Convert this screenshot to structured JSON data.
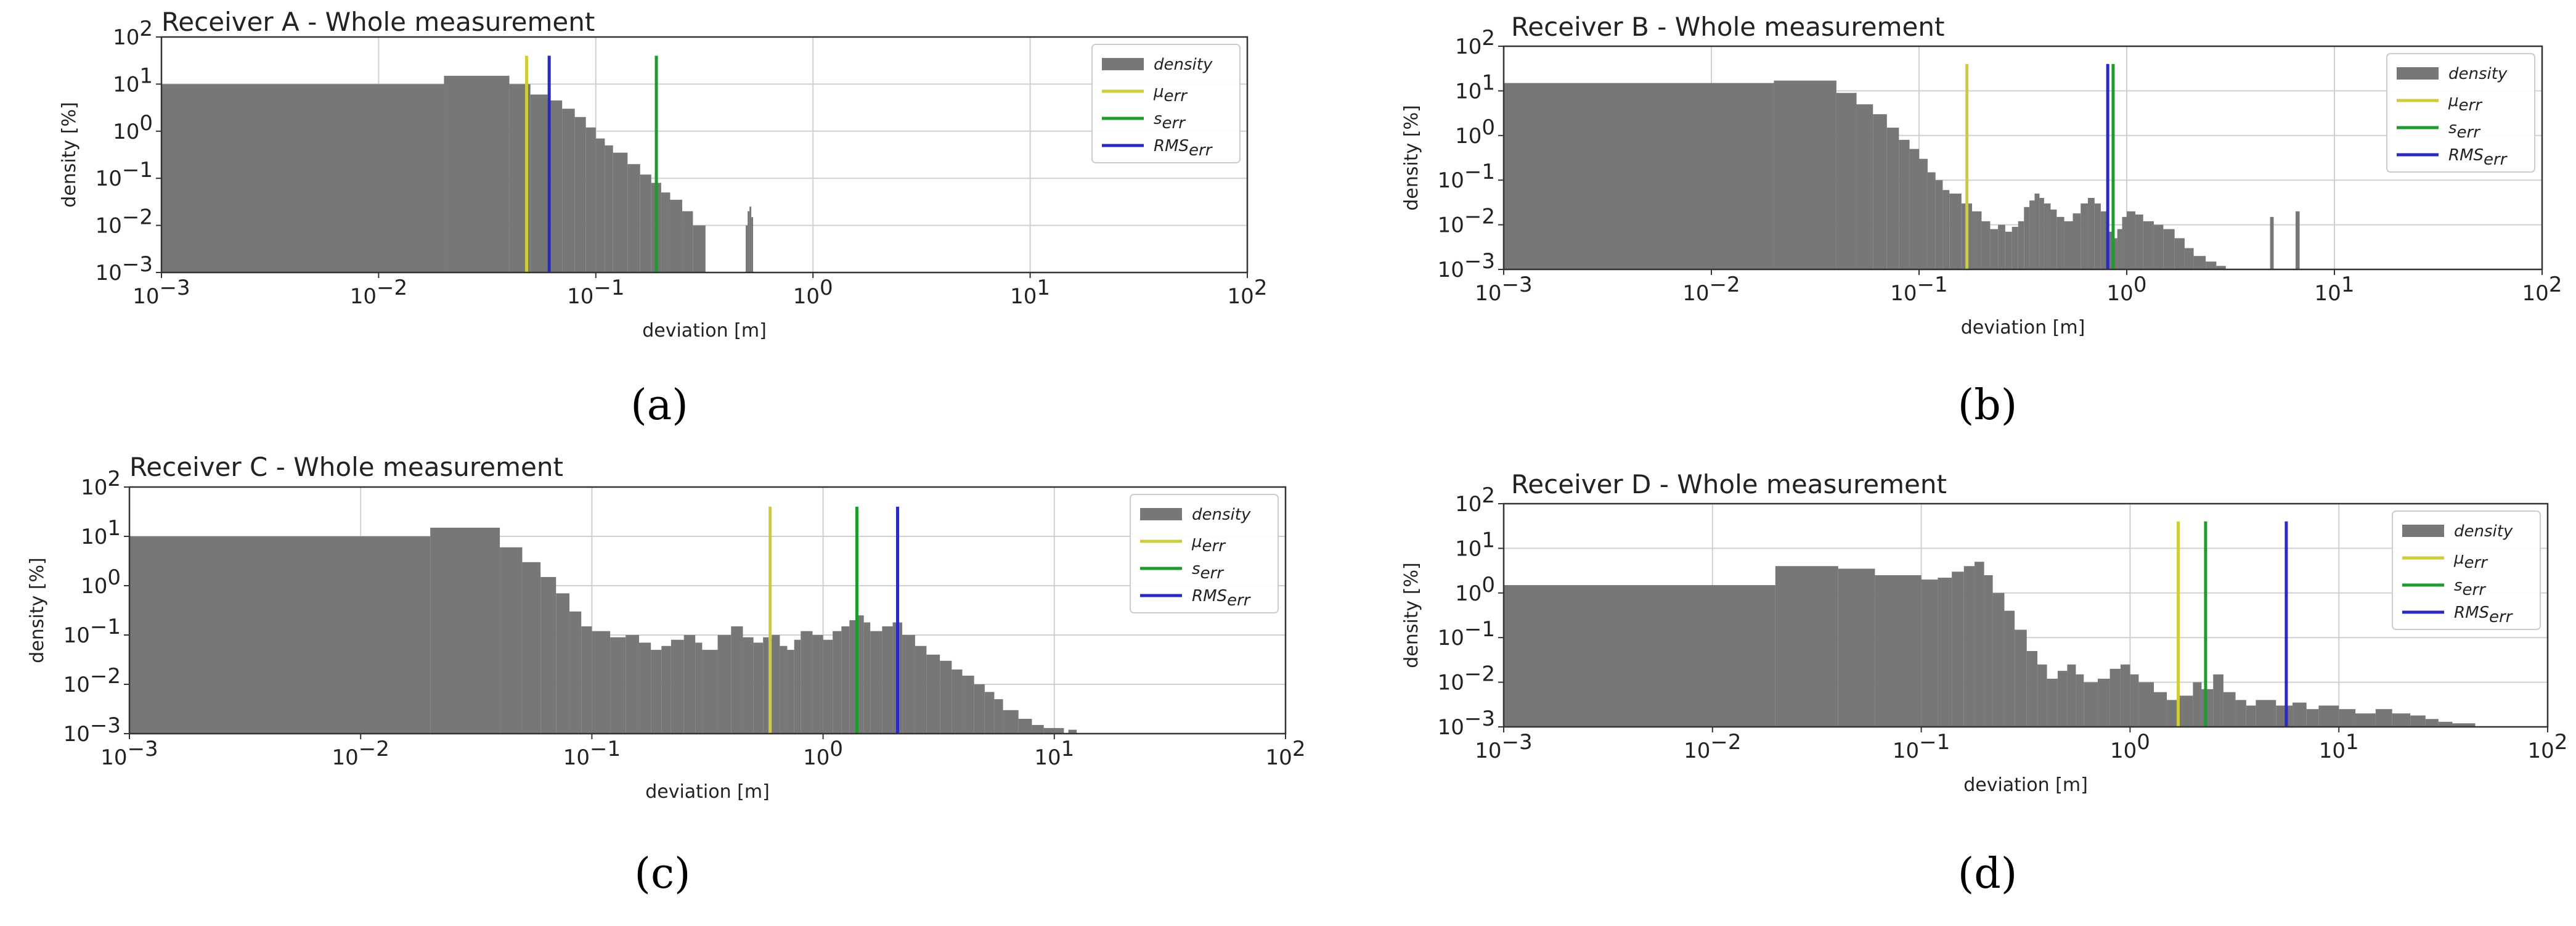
{
  "figure": {
    "panels": [
      {
        "id": "a",
        "caption": "(a)",
        "title": "Receiver A - Whole measurement"
      },
      {
        "id": "b",
        "caption": "(b)",
        "title": "Receiver B - Whole measurement"
      },
      {
        "id": "c",
        "caption": "(c)",
        "title": "Receiver C - Whole measurement"
      },
      {
        "id": "d",
        "caption": "(d)",
        "title": "Receiver D - Whole measurement"
      }
    ]
  },
  "chart_data": [
    {
      "type": "bar",
      "title": "Receiver A - Whole measurement",
      "xlabel": "deviation [m]",
      "ylabel": "density [%]",
      "xscale": "log",
      "yscale": "log",
      "xlim": [
        0.001,
        100
      ],
      "ylim": [
        0.001,
        100
      ],
      "xticks": [
        "10^-3",
        "10^-2",
        "10^-1",
        "10^0",
        "10^1",
        "10^2"
      ],
      "yticks": [
        "10^-3",
        "10^-2",
        "10^-1",
        "10^0",
        "10^1",
        "10^2"
      ],
      "grid": true,
      "legend": {
        "position": "top-right",
        "entries": [
          {
            "label": "density",
            "color": "#777777",
            "kind": "bar"
          },
          {
            "label": "μ",
            "sub": "err",
            "color": "#cdcd3c",
            "kind": "line"
          },
          {
            "label": "s",
            "sub": "err",
            "color": "#1e9a2e",
            "kind": "line"
          },
          {
            "label": "RMS",
            "sub": "err",
            "color": "#2a2ac0",
            "kind": "line"
          }
        ]
      },
      "density": [
        [
          0.001,
          0.02,
          10
        ],
        [
          0.02,
          0.04,
          15
        ],
        [
          0.04,
          0.05,
          10
        ],
        [
          0.05,
          0.06,
          6
        ],
        [
          0.06,
          0.07,
          4.5
        ],
        [
          0.07,
          0.08,
          3
        ],
        [
          0.08,
          0.09,
          2
        ],
        [
          0.09,
          0.1,
          1.2
        ],
        [
          0.1,
          0.11,
          0.7
        ],
        [
          0.11,
          0.12,
          0.5
        ],
        [
          0.12,
          0.14,
          0.35
        ],
        [
          0.14,
          0.16,
          0.2
        ],
        [
          0.16,
          0.18,
          0.12
        ],
        [
          0.18,
          0.2,
          0.08
        ],
        [
          0.2,
          0.22,
          0.05
        ],
        [
          0.22,
          0.25,
          0.035
        ],
        [
          0.25,
          0.28,
          0.02
        ],
        [
          0.28,
          0.32,
          0.01
        ],
        [
          0.49,
          0.5,
          0.01
        ],
        [
          0.5,
          0.51,
          0.02
        ],
        [
          0.51,
          0.52,
          0.025
        ],
        [
          0.52,
          0.53,
          0.015
        ]
      ],
      "stats": {
        "mu_err": 0.048,
        "s_err": 0.19,
        "rms_err": 0.061
      }
    },
    {
      "type": "bar",
      "title": "Receiver B - Whole measurement",
      "xlabel": "deviation [m]",
      "ylabel": "density [%]",
      "xscale": "log",
      "yscale": "log",
      "xlim": [
        0.001,
        100
      ],
      "ylim": [
        0.001,
        100
      ],
      "xticks": [
        "10^-3",
        "10^-2",
        "10^-1",
        "10^0",
        "10^1",
        "10^2"
      ],
      "yticks": [
        "10^-3",
        "10^-2",
        "10^-1",
        "10^0",
        "10^1",
        "10^2"
      ],
      "grid": true,
      "legend": {
        "position": "top-right",
        "entries": [
          {
            "label": "density",
            "color": "#777777",
            "kind": "bar"
          },
          {
            "label": "μ",
            "sub": "err",
            "color": "#cdcd3c",
            "kind": "line"
          },
          {
            "label": "s",
            "sub": "err",
            "color": "#1e9a2e",
            "kind": "line"
          },
          {
            "label": "RMS",
            "sub": "err",
            "color": "#2a2ac0",
            "kind": "line"
          }
        ]
      },
      "density": [
        [
          0.001,
          0.02,
          15
        ],
        [
          0.02,
          0.04,
          17
        ],
        [
          0.04,
          0.05,
          9
        ],
        [
          0.05,
          0.06,
          5
        ],
        [
          0.06,
          0.07,
          3
        ],
        [
          0.07,
          0.08,
          1.5
        ],
        [
          0.08,
          0.09,
          0.8
        ],
        [
          0.09,
          0.1,
          0.5
        ],
        [
          0.1,
          0.11,
          0.3
        ],
        [
          0.11,
          0.12,
          0.15
        ],
        [
          0.12,
          0.13,
          0.1
        ],
        [
          0.13,
          0.14,
          0.06
        ],
        [
          0.14,
          0.16,
          0.05
        ],
        [
          0.16,
          0.18,
          0.03
        ],
        [
          0.18,
          0.2,
          0.02
        ],
        [
          0.2,
          0.22,
          0.012
        ],
        [
          0.22,
          0.24,
          0.008
        ],
        [
          0.24,
          0.26,
          0.01
        ],
        [
          0.26,
          0.28,
          0.007
        ],
        [
          0.28,
          0.3,
          0.009
        ],
        [
          0.3,
          0.32,
          0.012
        ],
        [
          0.32,
          0.34,
          0.025
        ],
        [
          0.34,
          0.36,
          0.035
        ],
        [
          0.36,
          0.38,
          0.05
        ],
        [
          0.38,
          0.4,
          0.04
        ],
        [
          0.4,
          0.43,
          0.03
        ],
        [
          0.43,
          0.46,
          0.022
        ],
        [
          0.46,
          0.5,
          0.015
        ],
        [
          0.5,
          0.55,
          0.012
        ],
        [
          0.55,
          0.6,
          0.018
        ],
        [
          0.6,
          0.65,
          0.03
        ],
        [
          0.65,
          0.7,
          0.04
        ],
        [
          0.7,
          0.75,
          0.03
        ],
        [
          0.75,
          0.8,
          0.02
        ],
        [
          0.8,
          0.85,
          0.007
        ],
        [
          0.85,
          0.9,
          0.005
        ],
        [
          0.9,
          0.95,
          0.008
        ],
        [
          0.95,
          1,
          0.015
        ],
        [
          1,
          1.1,
          0.02
        ],
        [
          1.1,
          1.2,
          0.017
        ],
        [
          1.2,
          1.35,
          0.012
        ],
        [
          1.35,
          1.5,
          0.01
        ],
        [
          1.5,
          1.7,
          0.008
        ],
        [
          1.7,
          1.9,
          0.005
        ],
        [
          1.9,
          2.1,
          0.003
        ],
        [
          2.1,
          2.4,
          0.002
        ],
        [
          2.4,
          2.7,
          0.0015
        ],
        [
          2.7,
          3,
          0.0012
        ],
        [
          4.9,
          5.1,
          0.015
        ],
        [
          6.5,
          6.8,
          0.02
        ]
      ],
      "stats": {
        "mu_err": 0.17,
        "s_err": 0.86,
        "rms_err": 0.81
      }
    },
    {
      "type": "bar",
      "title": "Receiver C - Whole measurement",
      "xlabel": "deviation [m]",
      "ylabel": "density [%]",
      "xscale": "log",
      "yscale": "log",
      "xlim": [
        0.001,
        100
      ],
      "ylim": [
        0.001,
        100
      ],
      "xticks": [
        "10^-3",
        "10^-2",
        "10^-1",
        "10^0",
        "10^1",
        "10^2"
      ],
      "yticks": [
        "10^-3",
        "10^-2",
        "10^-1",
        "10^0",
        "10^1",
        "10^2"
      ],
      "grid": true,
      "legend": {
        "position": "top-right",
        "entries": [
          {
            "label": "density",
            "color": "#777777",
            "kind": "bar"
          },
          {
            "label": "μ",
            "sub": "err",
            "color": "#cdcd3c",
            "kind": "line"
          },
          {
            "label": "s",
            "sub": "err",
            "color": "#1e9a2e",
            "kind": "line"
          },
          {
            "label": "RMS",
            "sub": "err",
            "color": "#2a2ac0",
            "kind": "line"
          }
        ]
      },
      "density": [
        [
          0.001,
          0.02,
          10
        ],
        [
          0.02,
          0.04,
          15
        ],
        [
          0.04,
          0.05,
          6
        ],
        [
          0.05,
          0.06,
          3
        ],
        [
          0.06,
          0.07,
          1.5
        ],
        [
          0.07,
          0.08,
          0.7
        ],
        [
          0.08,
          0.09,
          0.3
        ],
        [
          0.09,
          0.1,
          0.15
        ],
        [
          0.1,
          0.12,
          0.12
        ],
        [
          0.12,
          0.14,
          0.09
        ],
        [
          0.14,
          0.16,
          0.1
        ],
        [
          0.16,
          0.18,
          0.07
        ],
        [
          0.18,
          0.2,
          0.05
        ],
        [
          0.2,
          0.22,
          0.06
        ],
        [
          0.22,
          0.25,
          0.08
        ],
        [
          0.25,
          0.28,
          0.1
        ],
        [
          0.28,
          0.3,
          0.07
        ],
        [
          0.3,
          0.35,
          0.05
        ],
        [
          0.35,
          0.4,
          0.1
        ],
        [
          0.4,
          0.45,
          0.15
        ],
        [
          0.45,
          0.5,
          0.09
        ],
        [
          0.5,
          0.55,
          0.07
        ],
        [
          0.55,
          0.6,
          0.09
        ],
        [
          0.6,
          0.65,
          0.1
        ],
        [
          0.65,
          0.7,
          0.06
        ],
        [
          0.7,
          0.75,
          0.05
        ],
        [
          0.75,
          0.8,
          0.08
        ],
        [
          0.8,
          0.9,
          0.12
        ],
        [
          0.9,
          1,
          0.1
        ],
        [
          1,
          1.1,
          0.08
        ],
        [
          1.1,
          1.2,
          0.12
        ],
        [
          1.2,
          1.3,
          0.15
        ],
        [
          1.3,
          1.4,
          0.2
        ],
        [
          1.4,
          1.5,
          0.25
        ],
        [
          1.5,
          1.6,
          0.18
        ],
        [
          1.6,
          1.8,
          0.12
        ],
        [
          1.8,
          2,
          0.15
        ],
        [
          2,
          2.2,
          0.18
        ],
        [
          2.2,
          2.5,
          0.1
        ],
        [
          2.5,
          2.8,
          0.06
        ],
        [
          2.8,
          3.2,
          0.04
        ],
        [
          3.2,
          3.6,
          0.03
        ],
        [
          3.6,
          4,
          0.02
        ],
        [
          4,
          4.5,
          0.015
        ],
        [
          4.5,
          5,
          0.01
        ],
        [
          5,
          5.5,
          0.007
        ],
        [
          5.5,
          6,
          0.005
        ],
        [
          6,
          7,
          0.003
        ],
        [
          7,
          8,
          0.002
        ],
        [
          8,
          9,
          0.0015
        ],
        [
          9,
          11,
          0.0013
        ],
        [
          11.5,
          12.5,
          0.0012
        ]
      ],
      "stats": {
        "mu_err": 0.59,
        "s_err": 1.4,
        "rms_err": 2.1
      }
    },
    {
      "type": "bar",
      "title": "Receiver D - Whole measurement",
      "xlabel": "deviation [m]",
      "ylabel": "density [%]",
      "xscale": "log",
      "yscale": "log",
      "xlim": [
        0.001,
        100
      ],
      "ylim": [
        0.001,
        100
      ],
      "xticks": [
        "10^-3",
        "10^-2",
        "10^-1",
        "10^0",
        "10^1",
        "10^2"
      ],
      "yticks": [
        "10^-3",
        "10^-2",
        "10^-1",
        "10^0",
        "10^1",
        "10^2"
      ],
      "grid": true,
      "legend": {
        "position": "top-right",
        "entries": [
          {
            "label": "density",
            "color": "#777777",
            "kind": "bar"
          },
          {
            "label": "μ",
            "sub": "err",
            "color": "#cdcd3c",
            "kind": "line"
          },
          {
            "label": "s",
            "sub": "err",
            "color": "#1e9a2e",
            "kind": "line"
          },
          {
            "label": "RMS",
            "sub": "err",
            "color": "#2a2ac0",
            "kind": "line"
          }
        ]
      },
      "density": [
        [
          0.001,
          0.02,
          1.5
        ],
        [
          0.02,
          0.04,
          4
        ],
        [
          0.04,
          0.06,
          3.5
        ],
        [
          0.06,
          0.1,
          2.5
        ],
        [
          0.1,
          0.12,
          2
        ],
        [
          0.12,
          0.14,
          2.2
        ],
        [
          0.14,
          0.16,
          3
        ],
        [
          0.16,
          0.18,
          4
        ],
        [
          0.18,
          0.2,
          5
        ],
        [
          0.2,
          0.22,
          2.5
        ],
        [
          0.22,
          0.25,
          1
        ],
        [
          0.25,
          0.28,
          0.4
        ],
        [
          0.28,
          0.32,
          0.15
        ],
        [
          0.32,
          0.36,
          0.05
        ],
        [
          0.36,
          0.4,
          0.025
        ],
        [
          0.4,
          0.45,
          0.012
        ],
        [
          0.45,
          0.5,
          0.018
        ],
        [
          0.5,
          0.55,
          0.025
        ],
        [
          0.55,
          0.6,
          0.015
        ],
        [
          0.6,
          0.7,
          0.01
        ],
        [
          0.7,
          0.8,
          0.012
        ],
        [
          0.8,
          0.9,
          0.02
        ],
        [
          0.9,
          1,
          0.025
        ],
        [
          1,
          1.1,
          0.015
        ],
        [
          1.1,
          1.3,
          0.01
        ],
        [
          1.3,
          1.5,
          0.006
        ],
        [
          1.5,
          1.7,
          0.004
        ],
        [
          1.7,
          2,
          0.005
        ],
        [
          2,
          2.2,
          0.01
        ],
        [
          2.2,
          2.5,
          0.007
        ],
        [
          2.5,
          2.8,
          0.015
        ],
        [
          2.8,
          3.2,
          0.006
        ],
        [
          3.2,
          3.6,
          0.004
        ],
        [
          3.6,
          4,
          0.003
        ],
        [
          4,
          5,
          0.004
        ],
        [
          5,
          6,
          0.003
        ],
        [
          6,
          7,
          0.0035
        ],
        [
          7,
          8,
          0.0025
        ],
        [
          8,
          10,
          0.003
        ],
        [
          10,
          12,
          0.0025
        ],
        [
          12,
          15,
          0.002
        ],
        [
          15,
          18,
          0.0025
        ],
        [
          18,
          22,
          0.002
        ],
        [
          22,
          26,
          0.0018
        ],
        [
          26,
          30,
          0.0015
        ],
        [
          30,
          35,
          0.0013
        ],
        [
          35,
          45,
          0.0012
        ]
      ],
      "stats": {
        "mu_err": 1.7,
        "s_err": 2.3,
        "rms_err": 5.6
      }
    }
  ]
}
